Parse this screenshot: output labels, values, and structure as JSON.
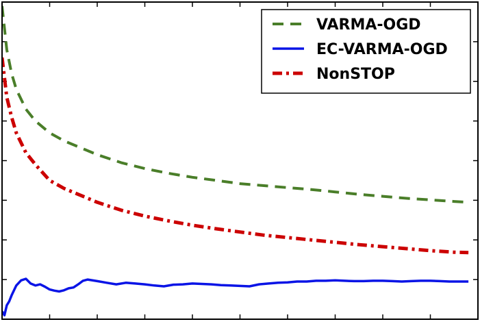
{
  "chart_data": {
    "type": "line",
    "title": "",
    "xlabel": "",
    "ylabel": "",
    "xlim": [
      0,
      100
    ],
    "ylim": [
      0,
      8
    ],
    "x_ticks": [
      0,
      10,
      20,
      30,
      40,
      50,
      60,
      70,
      80,
      90,
      100
    ],
    "y_ticks": [
      0,
      1,
      2,
      3,
      4,
      5,
      6,
      7,
      8
    ],
    "tick_labels_shown": false,
    "grid": false,
    "legend_position": "top-right",
    "series": [
      {
        "name": "VARMA-OGD",
        "color": "#4a7e29",
        "style": "dashed",
        "x": [
          0,
          1,
          2,
          3,
          5,
          7,
          10,
          13,
          16,
          20,
          25,
          30,
          35,
          40,
          45,
          50,
          55,
          60,
          65,
          70,
          75,
          80,
          85,
          90,
          95,
          98
        ],
        "y": [
          7.9,
          6.8,
          6.2,
          5.8,
          5.3,
          5.0,
          4.7,
          4.5,
          4.35,
          4.15,
          3.95,
          3.8,
          3.68,
          3.58,
          3.5,
          3.42,
          3.37,
          3.32,
          3.27,
          3.21,
          3.15,
          3.1,
          3.05,
          3.01,
          2.97,
          2.95
        ]
      },
      {
        "name": "EC-VARMA-OGD",
        "color": "#0a14e6",
        "style": "solid",
        "x": [
          0,
          0.5,
          1,
          1.5,
          2,
          3,
          4,
          5,
          6,
          7,
          8,
          9,
          10,
          11,
          12,
          13,
          14,
          15,
          16,
          17,
          18,
          20,
          22,
          24,
          26,
          28,
          30,
          32,
          34,
          36,
          38,
          40,
          42,
          44,
          46,
          48,
          50,
          52,
          54,
          56,
          58,
          60,
          62,
          64,
          66,
          68,
          70,
          72,
          74,
          76,
          78,
          80,
          82,
          84,
          86,
          88,
          90,
          92,
          94,
          96,
          98
        ],
        "y": [
          0.2,
          0.1,
          0.35,
          0.45,
          0.6,
          0.85,
          0.98,
          1.02,
          0.9,
          0.85,
          0.88,
          0.82,
          0.75,
          0.72,
          0.7,
          0.73,
          0.78,
          0.8,
          0.88,
          0.97,
          1.0,
          0.96,
          0.92,
          0.88,
          0.92,
          0.9,
          0.88,
          0.85,
          0.83,
          0.87,
          0.88,
          0.9,
          0.89,
          0.88,
          0.86,
          0.85,
          0.84,
          0.83,
          0.88,
          0.9,
          0.92,
          0.93,
          0.95,
          0.95,
          0.97,
          0.97,
          0.98,
          0.97,
          0.96,
          0.96,
          0.97,
          0.97,
          0.96,
          0.95,
          0.96,
          0.97,
          0.97,
          0.96,
          0.95,
          0.95,
          0.95
        ]
      },
      {
        "name": "NonSTOP",
        "color": "#cc0000",
        "style": "dash-dot",
        "x": [
          0,
          1,
          2,
          3,
          5,
          7,
          10,
          13,
          16,
          20,
          25,
          30,
          35,
          40,
          45,
          50,
          55,
          60,
          65,
          70,
          75,
          80,
          85,
          90,
          95,
          98
        ],
        "y": [
          6.6,
          5.6,
          5.1,
          4.7,
          4.2,
          3.9,
          3.5,
          3.3,
          3.15,
          2.95,
          2.75,
          2.6,
          2.48,
          2.37,
          2.28,
          2.2,
          2.12,
          2.06,
          2.0,
          1.94,
          1.88,
          1.83,
          1.78,
          1.73,
          1.69,
          1.68
        ]
      }
    ]
  }
}
